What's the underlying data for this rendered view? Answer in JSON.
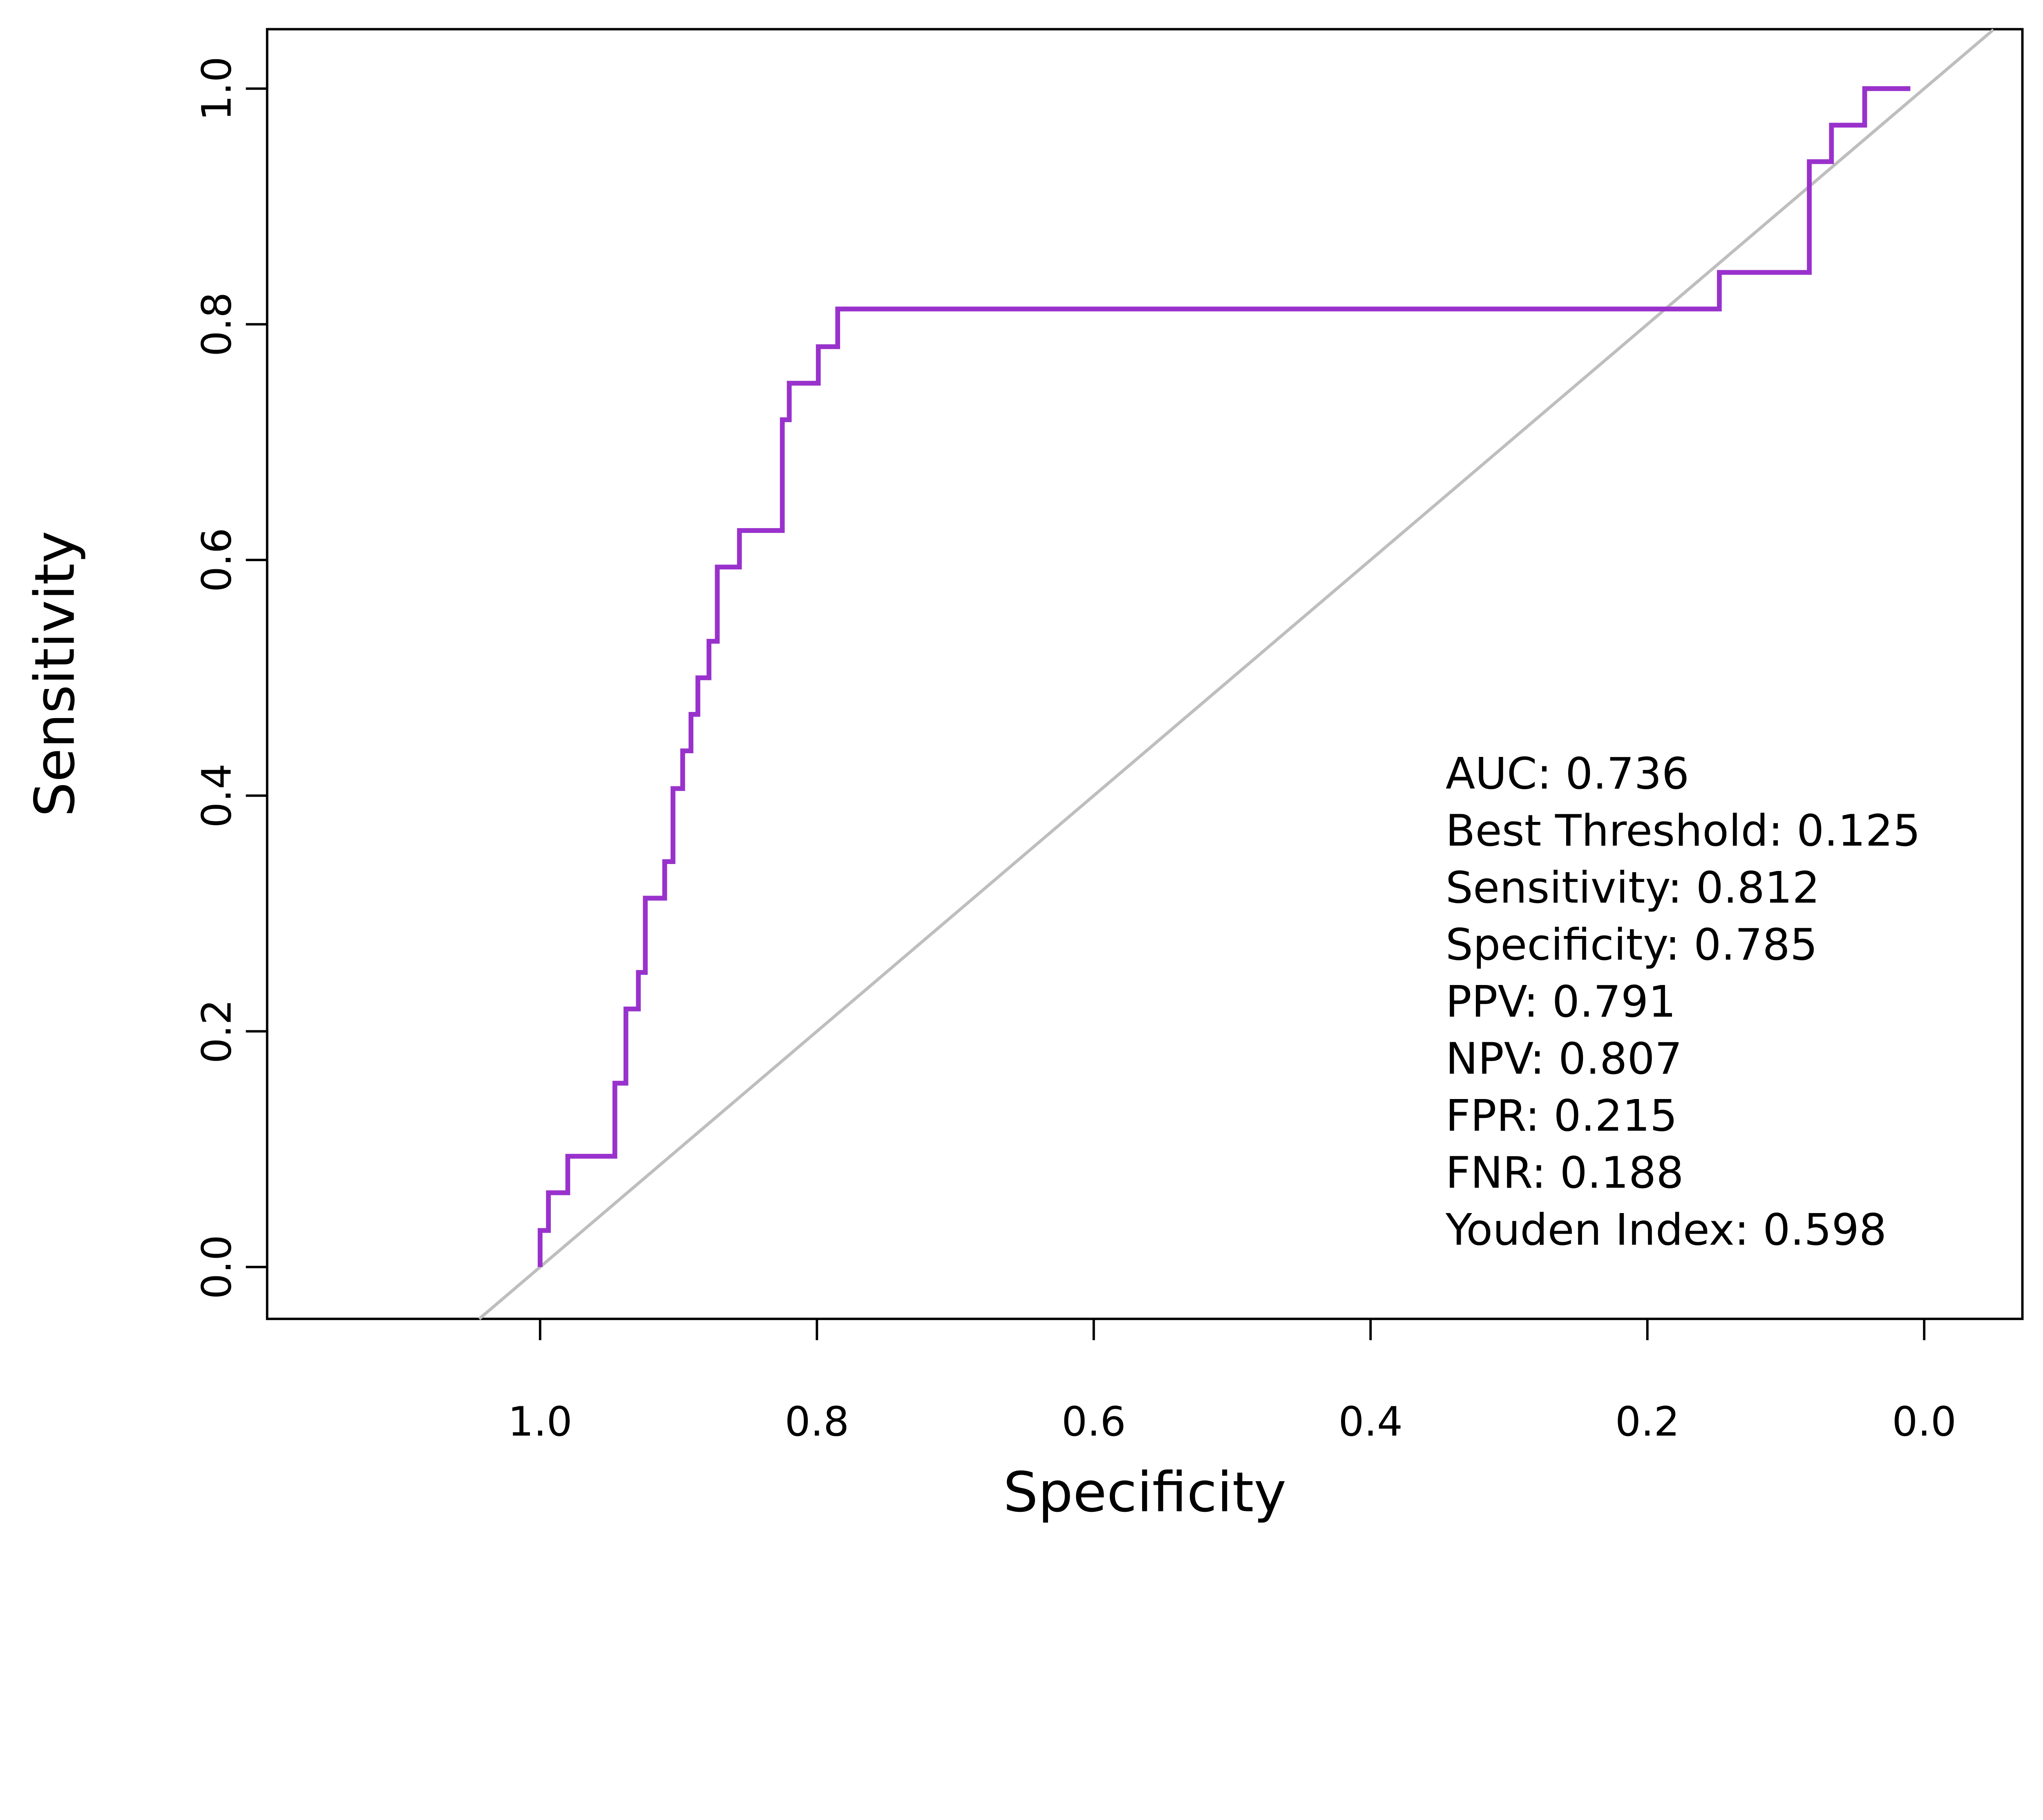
{
  "chart_data": {
    "type": "line",
    "subtype": "roc-step-curve",
    "title": "",
    "xlabel": "Specificity",
    "ylabel": "Sensitivity",
    "x_axis_reversed": true,
    "x_ticks": [
      "1.0",
      "0.8",
      "0.6",
      "0.4",
      "0.2",
      "0.0"
    ],
    "x_tick_values": [
      1.0,
      0.8,
      0.6,
      0.4,
      0.2,
      0.0
    ],
    "y_ticks": [
      "0.0",
      "0.2",
      "0.4",
      "0.6",
      "0.8",
      "1.0"
    ],
    "y_tick_values": [
      0.0,
      0.2,
      0.4,
      0.6,
      0.8,
      1.0
    ],
    "xlim": [
      1.0,
      0.0
    ],
    "ylim": [
      0.0,
      1.0
    ],
    "grid": false,
    "legend_position": "none",
    "series": [
      {
        "name": "ROC curve",
        "color": "#9932CC",
        "points_format": "[specificity, sensitivity]",
        "points": [
          [
            1.0,
            0.0
          ],
          [
            1.0,
            0.031
          ],
          [
            0.994,
            0.031
          ],
          [
            0.994,
            0.063
          ],
          [
            0.98,
            0.063
          ],
          [
            0.98,
            0.094
          ],
          [
            0.946,
            0.094
          ],
          [
            0.946,
            0.156
          ],
          [
            0.938,
            0.156
          ],
          [
            0.938,
            0.219
          ],
          [
            0.929,
            0.219
          ],
          [
            0.929,
            0.25
          ],
          [
            0.924,
            0.25
          ],
          [
            0.924,
            0.313
          ],
          [
            0.91,
            0.313
          ],
          [
            0.91,
            0.344
          ],
          [
            0.904,
            0.344
          ],
          [
            0.904,
            0.406
          ],
          [
            0.897,
            0.406
          ],
          [
            0.897,
            0.438
          ],
          [
            0.891,
            0.438
          ],
          [
            0.891,
            0.469
          ],
          [
            0.886,
            0.469
          ],
          [
            0.886,
            0.5
          ],
          [
            0.878,
            0.5
          ],
          [
            0.878,
            0.531
          ],
          [
            0.872,
            0.531
          ],
          [
            0.872,
            0.594
          ],
          [
            0.856,
            0.594
          ],
          [
            0.856,
            0.625
          ],
          [
            0.825,
            0.625
          ],
          [
            0.825,
            0.719
          ],
          [
            0.82,
            0.719
          ],
          [
            0.82,
            0.75
          ],
          [
            0.799,
            0.75
          ],
          [
            0.799,
            0.781
          ],
          [
            0.785,
            0.781
          ],
          [
            0.785,
            0.813
          ],
          [
            0.148,
            0.813
          ],
          [
            0.148,
            0.844
          ],
          [
            0.083,
            0.844
          ],
          [
            0.083,
            0.938
          ],
          [
            0.067,
            0.938
          ],
          [
            0.067,
            0.969
          ],
          [
            0.043,
            0.969
          ],
          [
            0.043,
            1.0
          ],
          [
            0.01,
            1.0
          ]
        ]
      },
      {
        "name": "Chance diagonal",
        "color": "#BEBEBE",
        "points_format": "[specificity, sensitivity]",
        "points": [
          [
            1.044,
            -0.044
          ],
          [
            -0.05,
            1.05
          ]
        ]
      }
    ],
    "annotation_lines": [
      "AUC: 0.736",
      "Best Threshold: 0.125",
      "Sensitivity: 0.812",
      "Specificity: 0.785",
      "PPV: 0.791",
      "NPV: 0.807",
      "FPR: 0.215",
      "FNR: 0.188",
      "Youden Index: 0.598"
    ]
  },
  "stats": {
    "auc": "0.736",
    "best_threshold": "0.125",
    "sensitivity": "0.812",
    "specificity": "0.785",
    "ppv": "0.791",
    "npv": "0.807",
    "fpr": "0.215",
    "fnr": "0.188",
    "youden_index": "0.598"
  },
  "colors": {
    "curve": "#9932CC",
    "diagonal": "#BEBEBE",
    "axis": "#000000",
    "background": "#FFFFFF",
    "text": "#000000"
  }
}
